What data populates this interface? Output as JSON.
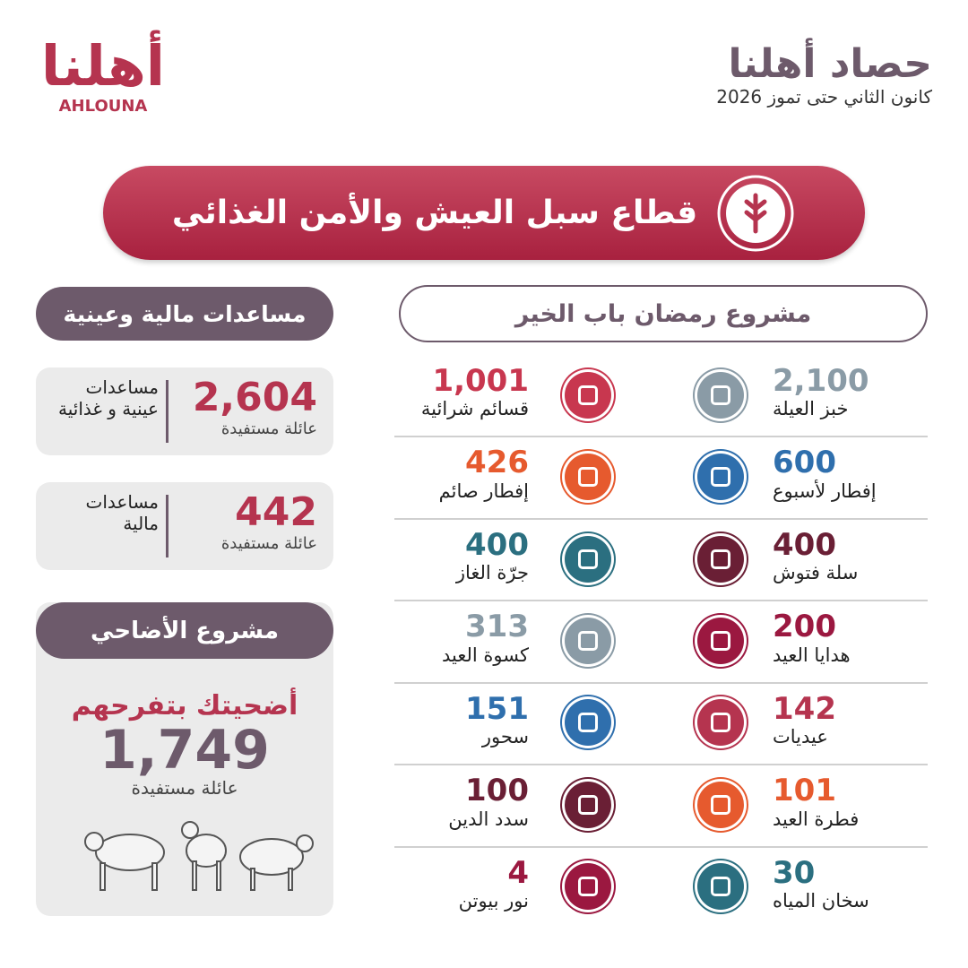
{
  "logo": {
    "arabic": "أهلنا",
    "latin": "AHLOUNA"
  },
  "header": {
    "title": "حصاد أهلنا",
    "subtitle": "كانون الثاني حتى تموز 2026"
  },
  "banner": {
    "title": "قطاع سبل العيش والأمن الغذائي"
  },
  "ramadan": {
    "title": "مشروع رمضان باب الخير",
    "rows": [
      [
        {
          "value": "2,100",
          "label": "خبز العيلة",
          "color": "#8a9ba6"
        },
        {
          "value": "1,001",
          "label": "قسائم شرائية",
          "color": "#c8374f"
        }
      ],
      [
        {
          "value": "600",
          "label": "إفطار لأسبوع",
          "color": "#2f6fad"
        },
        {
          "value": "426",
          "label": "إفطار صائم",
          "color": "#e65a2e"
        }
      ],
      [
        {
          "value": "400",
          "label": "سلة فتوش",
          "color": "#6a1f35"
        },
        {
          "value": "400",
          "label": "جرّة الغاز",
          "color": "#2b6f80"
        }
      ],
      [
        {
          "value": "200",
          "label": "هدايا العيد",
          "color": "#9b1840"
        },
        {
          "value": "313",
          "label": "كسوة العيد",
          "color": "#8a9ba6"
        }
      ],
      [
        {
          "value": "142",
          "label": "عيديات",
          "color": "#b5344f"
        },
        {
          "value": "151",
          "label": "سحور",
          "color": "#2f6fad"
        }
      ],
      [
        {
          "value": "101",
          "label": "فطرة العيد",
          "color": "#e65a2e"
        },
        {
          "value": "100",
          "label": "سدد الدين",
          "color": "#6a1f35"
        }
      ],
      [
        {
          "value": "30",
          "label": "سخان المياه",
          "color": "#2b6f80"
        },
        {
          "value": "4",
          "label": "نور بيوتن",
          "color": "#9b1840"
        }
      ]
    ]
  },
  "aid": {
    "title": "مساعدات مالية وعينية",
    "cards": [
      {
        "value": "2,604",
        "unit": "عائلة مستفيدة",
        "label": "مساعدات عينية و غذائية"
      },
      {
        "value": "442",
        "unit": "عائلة مستفيدة",
        "label": "مساعدات مالية"
      }
    ]
  },
  "adahi": {
    "title": "مشروع الأضاحي",
    "slogan": "أضحيتك بتفرحهم",
    "value": "1,749",
    "unit": "عائلة مستفيدة"
  }
}
